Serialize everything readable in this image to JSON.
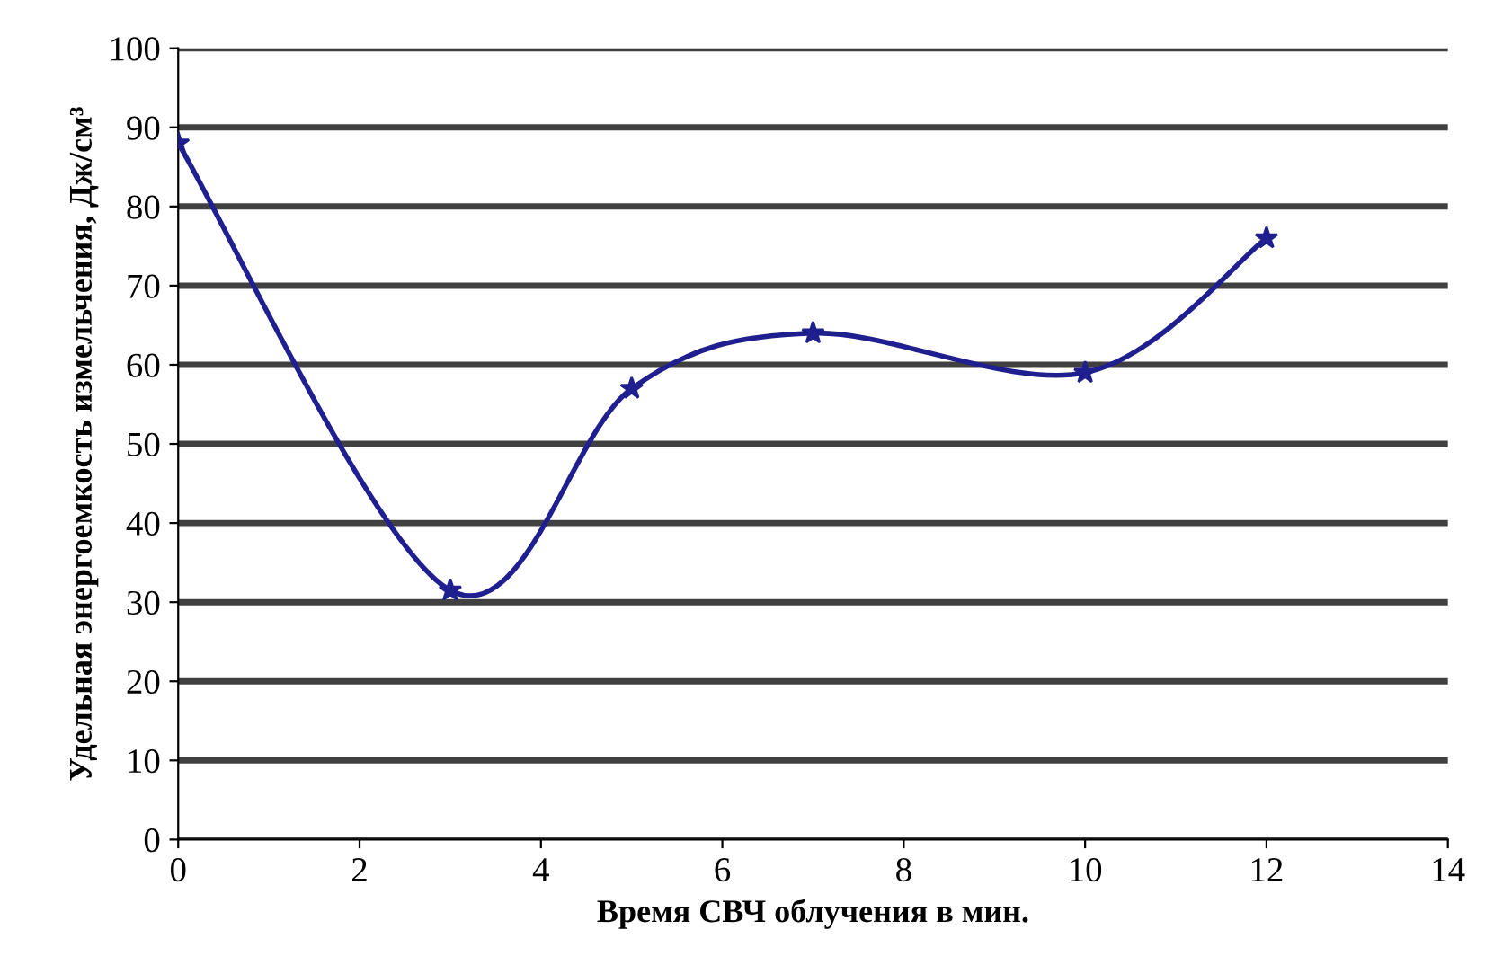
{
  "chart_data": {
    "type": "line",
    "xlabel": "Время СВЧ облучения в мин.",
    "ylabel": "Удельная энергоемкость измельчения, Дж/см³",
    "x": [
      0,
      3,
      5,
      7,
      10,
      12
    ],
    "series": [
      {
        "color": "#1f1f8f",
        "values": [
          88,
          31.5,
          57,
          64,
          59,
          76
        ]
      }
    ],
    "xlim": [
      0,
      14
    ],
    "ylim": [
      0,
      100
    ],
    "xticks": [
      0,
      2,
      4,
      6,
      8,
      10,
      12,
      14
    ],
    "yticks": [
      0,
      10,
      20,
      30,
      40,
      50,
      60,
      70,
      80,
      90,
      100
    ],
    "grid": "y",
    "marker": "star",
    "line_style": "solid",
    "legend": false
  }
}
